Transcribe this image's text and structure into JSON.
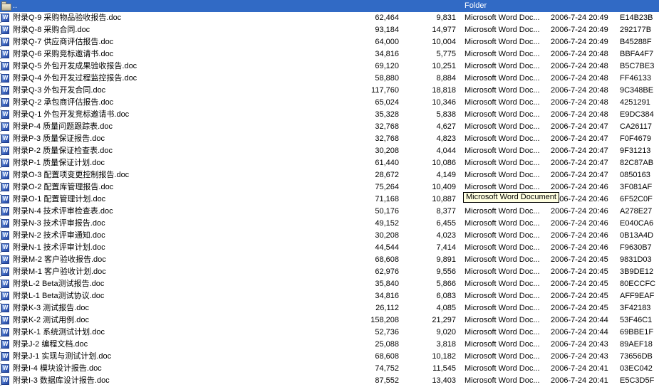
{
  "colors": {
    "selection_bg": "#316AC5",
    "selection_text": "#FFFFFF",
    "tooltip_bg": "#FFFFE1",
    "row_text": "#000000"
  },
  "icons": {
    "word_glyph": "W",
    "word_icon_name": "word-doc-icon",
    "folder_icon_name": "folder-icon"
  },
  "tooltip": {
    "text": "Microsoft Word Document"
  },
  "list": {
    "rows": [
      {
        "name": "..",
        "size": "",
        "packed": "",
        "type": "Folder",
        "modified": "",
        "crc": "",
        "is_parent": true,
        "selected": true
      },
      {
        "name": "附录Q-9 采购物品验收报告.doc",
        "size": "62,464",
        "packed": "9,831",
        "type": "Microsoft Word Doc...",
        "modified": "2006-7-24 20:49",
        "crc": "E14B23B"
      },
      {
        "name": "附录Q-8 采购合同.doc",
        "size": "93,184",
        "packed": "14,977",
        "type": "Microsoft Word Doc...",
        "modified": "2006-7-24 20:49",
        "crc": "292177B"
      },
      {
        "name": "附录Q-7 供应商评估报告.doc",
        "size": "64,000",
        "packed": "10,004",
        "type": "Microsoft Word Doc...",
        "modified": "2006-7-24 20:49",
        "crc": "B45288F"
      },
      {
        "name": "附录Q-6 采购竞标邀请书.doc",
        "size": "34,816",
        "packed": "5,775",
        "type": "Microsoft Word Doc...",
        "modified": "2006-7-24 20:48",
        "crc": "BBFA4F7"
      },
      {
        "name": "附录Q-5 外包开发成果验收报告.doc",
        "size": "69,120",
        "packed": "10,251",
        "type": "Microsoft Word Doc...",
        "modified": "2006-7-24 20:48",
        "crc": "B5C7BE3"
      },
      {
        "name": "附录Q-4 外包开发过程监控报告.doc",
        "size": "58,880",
        "packed": "8,884",
        "type": "Microsoft Word Doc...",
        "modified": "2006-7-24 20:48",
        "crc": "FF46133"
      },
      {
        "name": "附录Q-3 外包开发合同.doc",
        "size": "117,760",
        "packed": "18,818",
        "type": "Microsoft Word Doc...",
        "modified": "2006-7-24 20:48",
        "crc": "9C348BE"
      },
      {
        "name": "附录Q-2 承包商评估报告.doc",
        "size": "65,024",
        "packed": "10,346",
        "type": "Microsoft Word Doc...",
        "modified": "2006-7-24 20:48",
        "crc": "4251291"
      },
      {
        "name": "附录Q-1 外包开发竞标邀请书.doc",
        "size": "35,328",
        "packed": "5,838",
        "type": "Microsoft Word Doc...",
        "modified": "2006-7-24 20:48",
        "crc": "E9DC384"
      },
      {
        "name": "附录P-4 质量问题跟踪表.doc",
        "size": "32,768",
        "packed": "4,627",
        "type": "Microsoft Word Doc...",
        "modified": "2006-7-24 20:47",
        "crc": "CA26117"
      },
      {
        "name": "附录P-3 质量保证报告.doc",
        "size": "32,768",
        "packed": "4,823",
        "type": "Microsoft Word Doc...",
        "modified": "2006-7-24 20:47",
        "crc": "F0F4679"
      },
      {
        "name": "附录P-2 质量保证检查表.doc",
        "size": "30,208",
        "packed": "4,044",
        "type": "Microsoft Word Doc...",
        "modified": "2006-7-24 20:47",
        "crc": "9F31213"
      },
      {
        "name": "附录P-1 质量保证计划.doc",
        "size": "61,440",
        "packed": "10,086",
        "type": "Microsoft Word Doc...",
        "modified": "2006-7-24 20:47",
        "crc": "82C87AB"
      },
      {
        "name": "附录O-3 配置项变更控制报告.doc",
        "size": "28,672",
        "packed": "4,149",
        "type": "Microsoft Word Doc...",
        "modified": "2006-7-24 20:47",
        "crc": "0850163"
      },
      {
        "name": "附录O-2 配置库管理报告.doc",
        "size": "75,264",
        "packed": "10,409",
        "type": "Microsoft Word Doc...",
        "modified": "2006-7-24 20:46",
        "crc": "3F081AF"
      },
      {
        "name": "附录O-1 配置管理计划.doc",
        "size": "71,168",
        "packed": "10,887",
        "type": "Microsoft Word Doc...",
        "modified": "2006-7-24 20:46",
        "crc": "6F52C0F",
        "tooltip_anchor": true
      },
      {
        "name": "附录N-4 技术评审检查表.doc",
        "size": "50,176",
        "packed": "8,377",
        "type": "Microsoft Word Doc...",
        "modified": "2006-7-24 20:46",
        "crc": "A278E27"
      },
      {
        "name": "附录N-3 技术评审报告.doc",
        "size": "49,152",
        "packed": "6,455",
        "type": "Microsoft Word Doc...",
        "modified": "2006-7-24 20:46",
        "crc": "E040CA6"
      },
      {
        "name": "附录N-2 技术评审通知.doc",
        "size": "30,208",
        "packed": "4,023",
        "type": "Microsoft Word Doc...",
        "modified": "2006-7-24 20:46",
        "crc": "0B13A4D"
      },
      {
        "name": "附录N-1 技术评审计划.doc",
        "size": "44,544",
        "packed": "7,414",
        "type": "Microsoft Word Doc...",
        "modified": "2006-7-24 20:46",
        "crc": "F9630B7"
      },
      {
        "name": "附录M-2 客户验收报告.doc",
        "size": "68,608",
        "packed": "9,891",
        "type": "Microsoft Word Doc...",
        "modified": "2006-7-24 20:45",
        "crc": "9831D03"
      },
      {
        "name": "附录M-1 客户验收计划.doc",
        "size": "62,976",
        "packed": "9,556",
        "type": "Microsoft Word Doc...",
        "modified": "2006-7-24 20:45",
        "crc": "3B9DE12"
      },
      {
        "name": "附录L-2 Beta测试报告.doc",
        "size": "35,840",
        "packed": "5,866",
        "type": "Microsoft Word Doc...",
        "modified": "2006-7-24 20:45",
        "crc": "80ECCFC"
      },
      {
        "name": "附录L-1 Beta测试协议.doc",
        "size": "34,816",
        "packed": "6,083",
        "type": "Microsoft Word Doc...",
        "modified": "2006-7-24 20:45",
        "crc": "AFF9EAF"
      },
      {
        "name": "附录K-3 测试报告.doc",
        "size": "26,112",
        "packed": "4,085",
        "type": "Microsoft Word Doc...",
        "modified": "2006-7-24 20:45",
        "crc": "3F42183"
      },
      {
        "name": "附录K-2 测试用例.doc",
        "size": "158,208",
        "packed": "21,297",
        "type": "Microsoft Word Doc...",
        "modified": "2006-7-24 20:44",
        "crc": "53F46C1"
      },
      {
        "name": "附录K-1 系统测试计划.doc",
        "size": "52,736",
        "packed": "9,020",
        "type": "Microsoft Word Doc...",
        "modified": "2006-7-24 20:44",
        "crc": "69BBE1F"
      },
      {
        "name": "附录J-2 编程文档.doc",
        "size": "25,088",
        "packed": "3,818",
        "type": "Microsoft Word Doc...",
        "modified": "2006-7-24 20:43",
        "crc": "89AEF18"
      },
      {
        "name": "附录J-1 实现与测试计划.doc",
        "size": "68,608",
        "packed": "10,182",
        "type": "Microsoft Word Doc...",
        "modified": "2006-7-24 20:43",
        "crc": "73656DB"
      },
      {
        "name": "附录I-4 模块设计报告.doc",
        "size": "74,752",
        "packed": "11,545",
        "type": "Microsoft Word Doc...",
        "modified": "2006-7-24 20:41",
        "crc": "03EC042"
      },
      {
        "name": "附录I-3 数据库设计报告.doc",
        "size": "87,552",
        "packed": "13,403",
        "type": "Microsoft Word Doc...",
        "modified": "2006-7-24 20:41",
        "crc": "E5C3D5F"
      }
    ]
  }
}
